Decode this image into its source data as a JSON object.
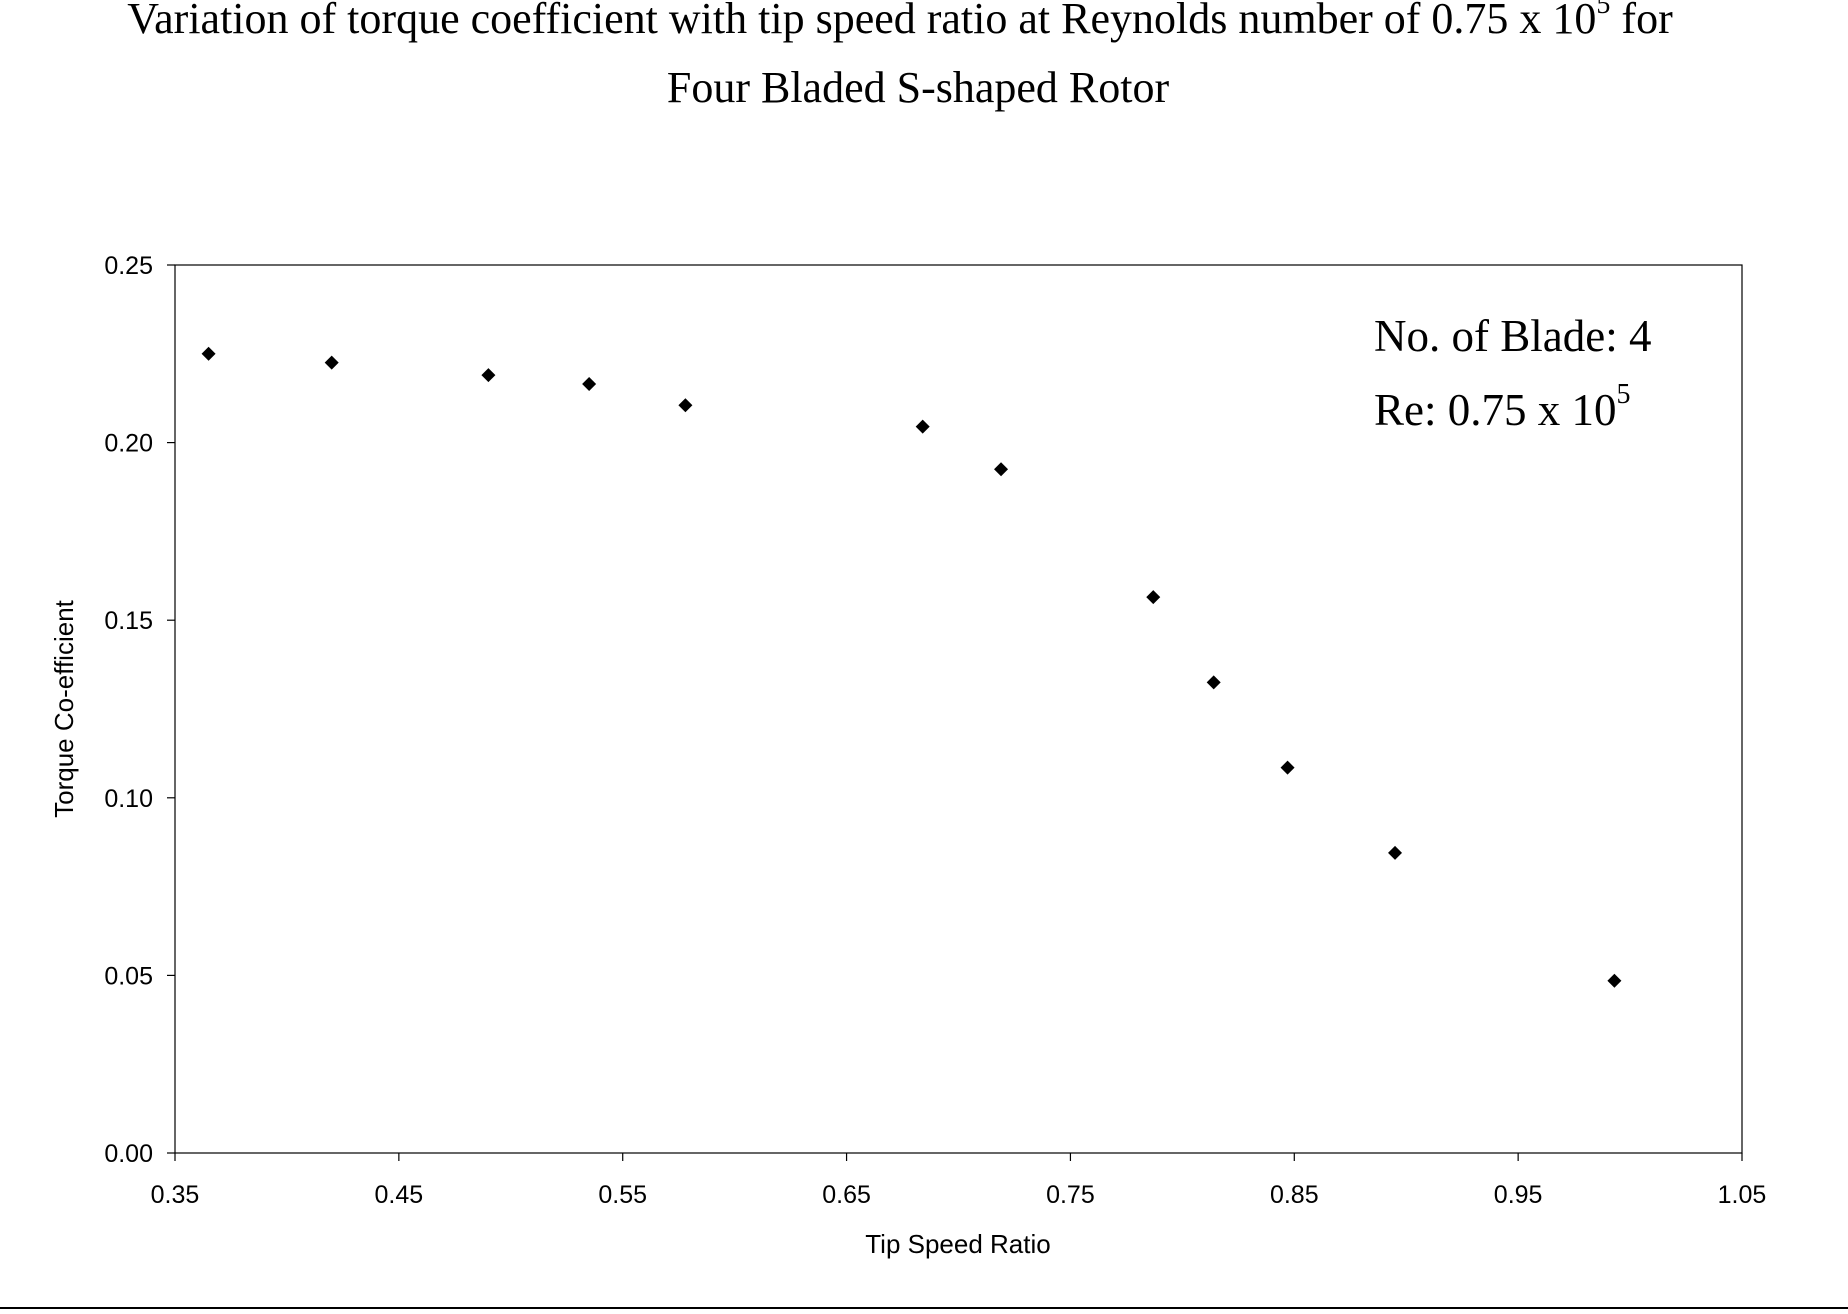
{
  "chart_data": {
    "type": "scatter",
    "title": {
      "line1_prefix": "Variation of torque coefficient with tip speed ratio at Reynolds number of 0.75 x 10",
      "line1_sup": "5",
      "line1_suffix": " for",
      "line2": "Four Bladed S-shaped Rotor"
    },
    "xlabel": "Tip Speed Ratio",
    "ylabel": "Torque Co-efficient",
    "xlim": [
      0.35,
      1.05
    ],
    "ylim": [
      0.0,
      0.25
    ],
    "x_ticks": [
      "0.35",
      "0.45",
      "0.55",
      "0.65",
      "0.75",
      "0.85",
      "0.95",
      "1.05"
    ],
    "y_ticks": [
      "0.00",
      "0.05",
      "0.10",
      "0.15",
      "0.20",
      "0.25"
    ],
    "grid": false,
    "legend": "none",
    "marker": "diamond",
    "marker_color": "#000000",
    "annotation": {
      "line1": "No. of Blade: 4",
      "line2_prefix": "Re: 0.75 x 10",
      "line2_sup": "5",
      "placement": "top-right"
    },
    "points": [
      {
        "x": 0.365,
        "y": 0.225
      },
      {
        "x": 0.42,
        "y": 0.2225
      },
      {
        "x": 0.49,
        "y": 0.219
      },
      {
        "x": 0.535,
        "y": 0.2165
      },
      {
        "x": 0.578,
        "y": 0.2105
      },
      {
        "x": 0.684,
        "y": 0.2045
      },
      {
        "x": 0.719,
        "y": 0.1925
      },
      {
        "x": 0.787,
        "y": 0.1565
      },
      {
        "x": 0.814,
        "y": 0.1325
      },
      {
        "x": 0.847,
        "y": 0.1085
      },
      {
        "x": 0.895,
        "y": 0.0845
      },
      {
        "x": 0.993,
        "y": 0.0485
      }
    ]
  }
}
